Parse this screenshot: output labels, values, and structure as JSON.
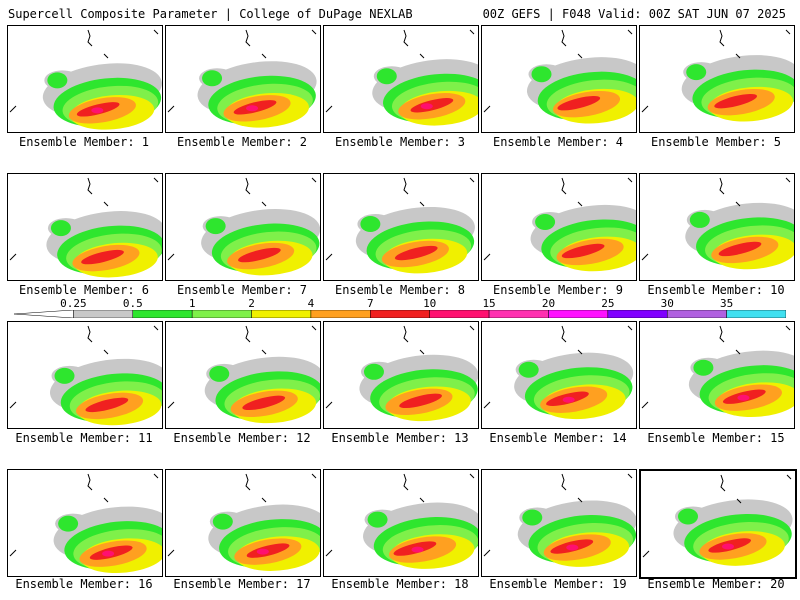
{
  "header": {
    "title": "Supercell Composite Parameter | College of DuPage NEXLAB",
    "run_info": "00Z GEFS | F048 Valid: 00Z SAT JUN 07 2025"
  },
  "members": [
    {
      "label": "Ensemble Member: 1",
      "selected": false
    },
    {
      "label": "Ensemble Member: 2",
      "selected": false
    },
    {
      "label": "Ensemble Member: 3",
      "selected": false
    },
    {
      "label": "Ensemble Member: 4",
      "selected": false
    },
    {
      "label": "Ensemble Member: 5",
      "selected": false
    },
    {
      "label": "Ensemble Member: 6",
      "selected": false
    },
    {
      "label": "Ensemble Member: 7",
      "selected": false
    },
    {
      "label": "Ensemble Member: 8",
      "selected": false
    },
    {
      "label": "Ensemble Member: 9",
      "selected": false
    },
    {
      "label": "Ensemble Member: 10",
      "selected": false
    },
    {
      "label": "Ensemble Member: 11",
      "selected": false
    },
    {
      "label": "Ensemble Member: 12",
      "selected": false
    },
    {
      "label": "Ensemble Member: 13",
      "selected": false
    },
    {
      "label": "Ensemble Member: 14",
      "selected": false
    },
    {
      "label": "Ensemble Member: 15",
      "selected": false
    },
    {
      "label": "Ensemble Member: 16",
      "selected": false
    },
    {
      "label": "Ensemble Member: 17",
      "selected": false
    },
    {
      "label": "Ensemble Member: 18",
      "selected": false
    },
    {
      "label": "Ensemble Member: 19",
      "selected": false
    },
    {
      "label": "Ensemble Member: 20",
      "selected": true
    }
  ],
  "colorbar": {
    "ticks": [
      "0.25",
      "0.5",
      "1",
      "2",
      "4",
      "7",
      "10",
      "15",
      "20",
      "25",
      "30",
      "35"
    ],
    "colors": [
      "#c8c8c8",
      "#2ee62e",
      "#7ff04a",
      "#f0f000",
      "#ffa020",
      "#f02020",
      "#ff1070",
      "#ff30b0",
      "#ff10ff",
      "#8000ff",
      "#b060e0",
      "#40e0f0"
    ]
  }
}
